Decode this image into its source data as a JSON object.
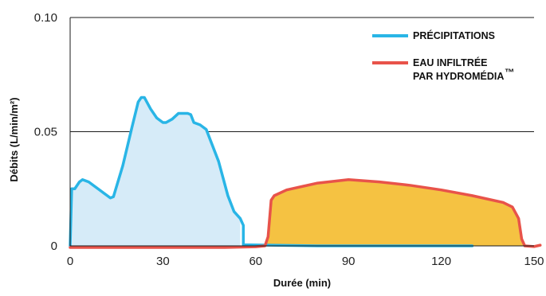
{
  "chart_data": {
    "type": "area",
    "xlabel": "Durée (min)",
    "ylabel": "Débits (L/min/m²)",
    "xlim": [
      0,
      150
    ],
    "ylim": [
      0,
      0.1
    ],
    "x_ticks": [
      "0",
      "30",
      "60",
      "90",
      "120",
      "150"
    ],
    "y_ticks": [
      "0",
      "0.05",
      "0.10"
    ],
    "grid": "horizontal",
    "legend": "top-right",
    "series": [
      {
        "name": "PRÉCIPITATIONS",
        "color": "#29b5e6",
        "fill": "#d6ebf8",
        "points": [
          [
            0,
            0
          ],
          [
            0.5,
            0.025
          ],
          [
            1.5,
            0.025
          ],
          [
            3,
            0.028
          ],
          [
            4,
            0.029
          ],
          [
            6,
            0.028
          ],
          [
            8,
            0.026
          ],
          [
            10,
            0.024
          ],
          [
            12,
            0.022
          ],
          [
            13,
            0.021
          ],
          [
            14,
            0.0215
          ],
          [
            17,
            0.035
          ],
          [
            20,
            0.052
          ],
          [
            22,
            0.063
          ],
          [
            23,
            0.065
          ],
          [
            24,
            0.065
          ],
          [
            26,
            0.06
          ],
          [
            28,
            0.056
          ],
          [
            30,
            0.054
          ],
          [
            31,
            0.054
          ],
          [
            33,
            0.0555
          ],
          [
            35,
            0.058
          ],
          [
            36,
            0.058
          ],
          [
            38,
            0.058
          ],
          [
            39,
            0.0575
          ],
          [
            40,
            0.054
          ],
          [
            42,
            0.053
          ],
          [
            44,
            0.051
          ],
          [
            48,
            0.037
          ],
          [
            51,
            0.022
          ],
          [
            53,
            0.015
          ],
          [
            55,
            0.012
          ],
          [
            56,
            0.009
          ],
          [
            56,
            0.0005
          ],
          [
            80,
            0
          ],
          [
            130,
            0
          ]
        ],
        "fill_until": 55
      },
      {
        "name": "EAU INFILTRÉE PAR HYDROMÉDIA",
        "name_lines": [
          "EAU INFILTRÉE",
          "PAR HYDROMÉDIA"
        ],
        "trademark": "™",
        "color": "#e8534a",
        "fill": "#f5c242",
        "points": [
          [
            0,
            -0.0007
          ],
          [
            30,
            -0.0007
          ],
          [
            50,
            -0.0007
          ],
          [
            60,
            -0.0004
          ],
          [
            63,
            0
          ],
          [
            64,
            0.004
          ],
          [
            65,
            0.02
          ],
          [
            66,
            0.022
          ],
          [
            70,
            0.0245
          ],
          [
            80,
            0.0275
          ],
          [
            90,
            0.029
          ],
          [
            100,
            0.028
          ],
          [
            110,
            0.0265
          ],
          [
            120,
            0.0245
          ],
          [
            130,
            0.022
          ],
          [
            140,
            0.019
          ],
          [
            143,
            0.017
          ],
          [
            145,
            0.012
          ],
          [
            146,
            0.003
          ],
          [
            147,
            0
          ],
          [
            150,
            -0.0003
          ],
          [
            152,
            0.0003
          ]
        ],
        "fill_range": [
          63,
          147
        ]
      }
    ]
  }
}
